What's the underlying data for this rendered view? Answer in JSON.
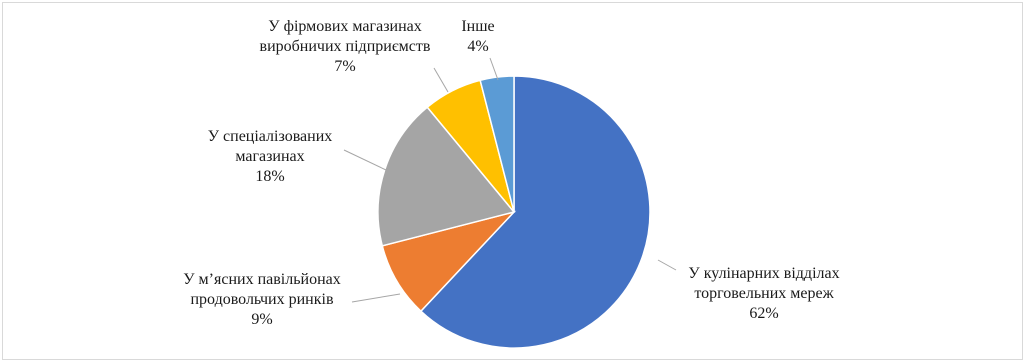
{
  "chart_data": {
    "type": "pie",
    "title": "",
    "slices": [
      {
        "label_lines": [
          "У кулінарних відділах",
          "торговельних мереж"
        ],
        "value": 62,
        "value_label": "62%",
        "color": "#4472c4"
      },
      {
        "label_lines": [
          "У м’ясних павільйонах",
          "продовольчих ринків"
        ],
        "value": 9,
        "value_label": "9%",
        "color": "#ed7d31"
      },
      {
        "label_lines": [
          "У спеціалізованих",
          "магазинах"
        ],
        "value": 18,
        "value_label": "18%",
        "color": "#a5a5a5"
      },
      {
        "label_lines": [
          "У фірмових магазинах",
          "виробничих підприємств"
        ],
        "value": 7,
        "value_label": "7%",
        "color": "#ffc000"
      },
      {
        "label_lines": [
          "Інше"
        ],
        "value": 4,
        "value_label": "4%",
        "color": "#5b9bd5"
      }
    ],
    "start_angle": "12 o'clock",
    "direction": "clockwise",
    "legend": "none",
    "data_labels": "outside with leader lines"
  }
}
